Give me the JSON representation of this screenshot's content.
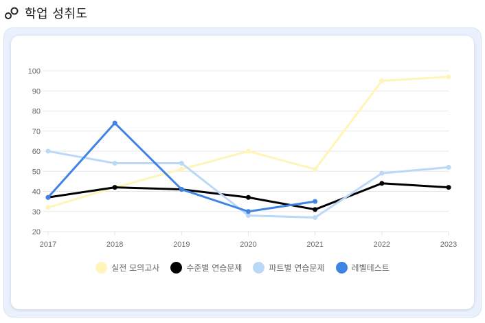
{
  "page": {
    "title": "학업 성취도",
    "icon": "link-circles-icon"
  },
  "chart_data": {
    "type": "line",
    "x": [
      "2017",
      "2018",
      "2019",
      "2020",
      "2021",
      "2022",
      "2023"
    ],
    "ylim": [
      20,
      100
    ],
    "yticks": [
      "20",
      "30",
      "40",
      "50",
      "60",
      "70",
      "80",
      "90",
      "100"
    ],
    "grid": true,
    "legend_position": "bottom",
    "series": [
      {
        "name": "실전 모의고사",
        "color": "#fff5b8",
        "values": [
          32,
          42,
          51,
          60,
          51,
          95,
          97
        ]
      },
      {
        "name": "수준별 연습문제",
        "color": "#000000",
        "values": [
          37,
          42,
          41,
          37,
          31,
          44,
          42
        ]
      },
      {
        "name": "파트별 연습문제",
        "color": "#bcd8f7",
        "values": [
          60,
          54,
          54,
          28,
          27,
          49,
          52
        ]
      },
      {
        "name": "레벨테스트",
        "color": "#3f84e5",
        "values": [
          37,
          74,
          41,
          30,
          35,
          null,
          null
        ]
      }
    ]
  }
}
